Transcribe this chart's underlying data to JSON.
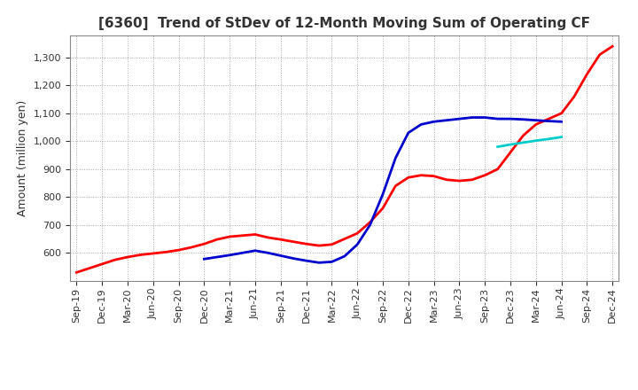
{
  "title": "[6360]  Trend of StDev of 12-Month Moving Sum of Operating CF",
  "ylabel": "Amount (million yen)",
  "ylim": [
    500,
    1380
  ],
  "yticks": [
    600,
    700,
    800,
    900,
    1000,
    1100,
    1200,
    1300
  ],
  "background_color": "#ffffff",
  "grid_color": "#aaaaaa",
  "series": {
    "3 Years": {
      "color": "#ff0000",
      "x": [
        0,
        1,
        2,
        3,
        4,
        5,
        6,
        7,
        8,
        9,
        10,
        11,
        12,
        13,
        14,
        15,
        16,
        17,
        18,
        19,
        20,
        21,
        22,
        23,
        24,
        25,
        26,
        27,
        28,
        29,
        30,
        31,
        32,
        33,
        34,
        35,
        36,
        37,
        38,
        39,
        40,
        41,
        42
      ],
      "y": [
        530,
        545,
        560,
        575,
        585,
        593,
        598,
        603,
        610,
        620,
        632,
        648,
        658,
        662,
        666,
        655,
        648,
        640,
        632,
        626,
        630,
        650,
        670,
        710,
        760,
        840,
        870,
        878,
        875,
        862,
        858,
        862,
        878,
        900,
        960,
        1020,
        1060,
        1080,
        1100,
        1160,
        1240,
        1310,
        1340
      ]
    },
    "5 Years": {
      "color": "#0000cc",
      "x": [
        10,
        11,
        12,
        13,
        14,
        15,
        16,
        17,
        18,
        19,
        20,
        21,
        22,
        23,
        24,
        25,
        26,
        27,
        28,
        29,
        30,
        31,
        32,
        33,
        34,
        35,
        36,
        37,
        38
      ],
      "y": [
        578,
        585,
        592,
        600,
        608,
        600,
        590,
        580,
        572,
        565,
        568,
        588,
        630,
        700,
        810,
        940,
        1030,
        1060,
        1070,
        1075,
        1080,
        1085,
        1085,
        1080,
        1080,
        1078,
        1075,
        1072,
        1070
      ]
    },
    "7 Years": {
      "color": "#00cccc",
      "x": [
        33,
        34,
        35,
        36,
        37,
        38
      ],
      "y": [
        980,
        988,
        995,
        1002,
        1008,
        1015
      ]
    },
    "10 Years": {
      "color": "#007700",
      "x": [],
      "y": []
    }
  },
  "xtick_labels": [
    "Sep-19",
    "Dec-19",
    "Mar-20",
    "Jun-20",
    "Sep-20",
    "Dec-20",
    "Mar-21",
    "Jun-21",
    "Sep-21",
    "Dec-21",
    "Mar-22",
    "Jun-22",
    "Sep-22",
    "Dec-22",
    "Mar-23",
    "Jun-23",
    "Sep-23",
    "Dec-23",
    "Mar-24",
    "Jun-24",
    "Sep-24",
    "Dec-24"
  ],
  "xlim": [
    -0.5,
    42.5
  ],
  "title_fontsize": 11,
  "label_fontsize": 9,
  "tick_fontsize": 8,
  "legend_fontsize": 9
}
